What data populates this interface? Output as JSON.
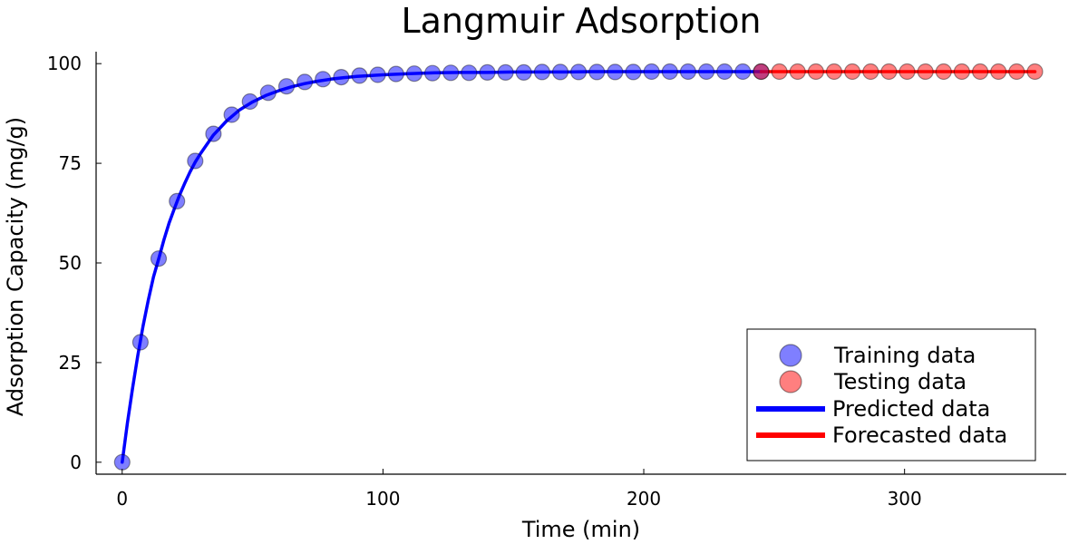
{
  "chart_data": {
    "type": "scatter",
    "title": "Langmuir Adsorption",
    "xlabel": "Time (min)",
    "ylabel": "Adsorption Capacity (mg/g)",
    "xlim": [
      -10,
      362
    ],
    "ylim": [
      -3,
      103
    ],
    "xticks": [
      0,
      100,
      200,
      300
    ],
    "yticks": [
      0,
      25,
      50,
      75,
      100
    ],
    "grid": false,
    "legend_position": "bottom-right",
    "series": [
      {
        "name": "Training data",
        "kind": "scatter",
        "color": "#0000ff",
        "x": [
          0,
          7,
          14,
          21,
          28,
          35,
          42,
          49,
          56,
          63,
          70,
          77,
          84,
          91,
          98,
          105,
          112,
          119,
          126,
          133,
          140,
          147,
          154,
          161,
          168,
          175,
          182,
          189,
          196,
          203,
          210,
          217,
          224,
          231,
          238,
          245
        ],
        "y": [
          0,
          30.1,
          51.1,
          65.5,
          75.6,
          82.4,
          87.2,
          90.5,
          92.7,
          94.3,
          95.4,
          96.1,
          96.6,
          97.0,
          97.2,
          97.4,
          97.5,
          97.6,
          97.7,
          97.7,
          97.8,
          97.8,
          97.8,
          97.9,
          97.9,
          97.9,
          97.9,
          97.9,
          97.9,
          98.0,
          98.0,
          98.0,
          98.0,
          98.0,
          98.0,
          98.0
        ]
      },
      {
        "name": "Testing data",
        "kind": "scatter",
        "color": "#ff0000",
        "x": [
          245,
          252,
          259,
          266,
          273,
          280,
          287,
          294,
          301,
          308,
          315,
          322,
          329,
          336,
          343,
          350
        ],
        "y": [
          98.0,
          98.0,
          98.0,
          98.0,
          98.0,
          98.0,
          98.0,
          98.0,
          98.0,
          98.0,
          98.0,
          98.0,
          98.0,
          98.0,
          98.0,
          98.0
        ]
      },
      {
        "name": "Predicted data",
        "kind": "line",
        "color": "#0000ff",
        "x": [
          0,
          2,
          4,
          6,
          8,
          10,
          12,
          14,
          16,
          18,
          20,
          22,
          24,
          26,
          28,
          30,
          35,
          40,
          45,
          50,
          55,
          60,
          65,
          70,
          75,
          80,
          85,
          90,
          95,
          100,
          110,
          120,
          130,
          140,
          150,
          160,
          170,
          180,
          190,
          200,
          215,
          230,
          245
        ],
        "y": [
          0,
          9.8,
          18.7,
          26.8,
          34.2,
          40.6,
          46.5,
          51.0,
          55.8,
          60.0,
          63.6,
          67.0,
          70.0,
          72.8,
          75.3,
          77.4,
          82.1,
          85.6,
          88.4,
          90.4,
          92.0,
          93.2,
          94.2,
          95.0,
          95.6,
          96.1,
          96.5,
          96.8,
          97.0,
          97.2,
          97.5,
          97.7,
          97.8,
          97.8,
          97.9,
          97.9,
          97.9,
          98.0,
          98.0,
          98.0,
          98.0,
          98.0,
          98.0
        ]
      },
      {
        "name": "Forecasted data",
        "kind": "line",
        "color": "#ff0000",
        "x": [
          245,
          350
        ],
        "y": [
          98.0,
          98.0
        ]
      }
    ]
  }
}
